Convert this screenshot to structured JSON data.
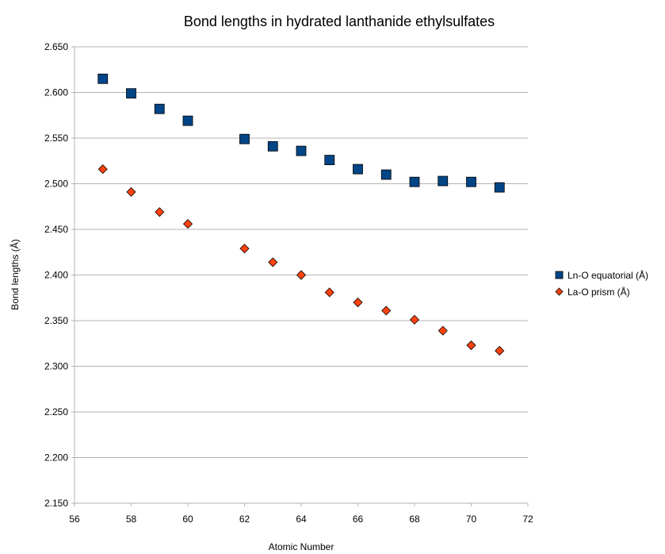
{
  "chart_data": {
    "type": "scatter",
    "title": "Bond lengths in hydrated lanthanide ethylsulfates",
    "xlabel": "Atomic Number",
    "ylabel": "Bond lengths (Å)",
    "xlim": [
      56,
      72
    ],
    "ylim": [
      2.15,
      2.65
    ],
    "x_ticks": [
      "56",
      "58",
      "60",
      "62",
      "64",
      "66",
      "68",
      "70",
      "72"
    ],
    "y_ticks": [
      "2.150",
      "2.200",
      "2.250",
      "2.300",
      "2.350",
      "2.400",
      "2.450",
      "2.500",
      "2.550",
      "2.600",
      "2.650"
    ],
    "grid": "horizontal",
    "legend_position": "right",
    "series": [
      {
        "name": "Ln-O equatorial (Å)",
        "marker": "square",
        "color": "#004586",
        "points": [
          {
            "x": 57,
            "y": 2.615
          },
          {
            "x": 58,
            "y": 2.599
          },
          {
            "x": 59,
            "y": 2.582
          },
          {
            "x": 60,
            "y": 2.569
          },
          {
            "x": 62,
            "y": 2.549
          },
          {
            "x": 63,
            "y": 2.541
          },
          {
            "x": 64,
            "y": 2.536
          },
          {
            "x": 65,
            "y": 2.526
          },
          {
            "x": 66,
            "y": 2.516
          },
          {
            "x": 67,
            "y": 2.51
          },
          {
            "x": 68,
            "y": 2.502
          },
          {
            "x": 69,
            "y": 2.503
          },
          {
            "x": 70,
            "y": 2.502
          },
          {
            "x": 71,
            "y": 2.496
          }
        ]
      },
      {
        "name": "La-O prism (Å)",
        "marker": "diamond",
        "color": "#ff420e",
        "points": [
          {
            "x": 57,
            "y": 2.516
          },
          {
            "x": 58,
            "y": 2.491
          },
          {
            "x": 59,
            "y": 2.469
          },
          {
            "x": 60,
            "y": 2.456
          },
          {
            "x": 62,
            "y": 2.429
          },
          {
            "x": 63,
            "y": 2.414
          },
          {
            "x": 64,
            "y": 2.4
          },
          {
            "x": 65,
            "y": 2.381
          },
          {
            "x": 66,
            "y": 2.37
          },
          {
            "x": 67,
            "y": 2.361
          },
          {
            "x": 68,
            "y": 2.351
          },
          {
            "x": 69,
            "y": 2.339
          },
          {
            "x": 70,
            "y": 2.323
          },
          {
            "x": 71,
            "y": 2.317
          }
        ]
      }
    ]
  }
}
